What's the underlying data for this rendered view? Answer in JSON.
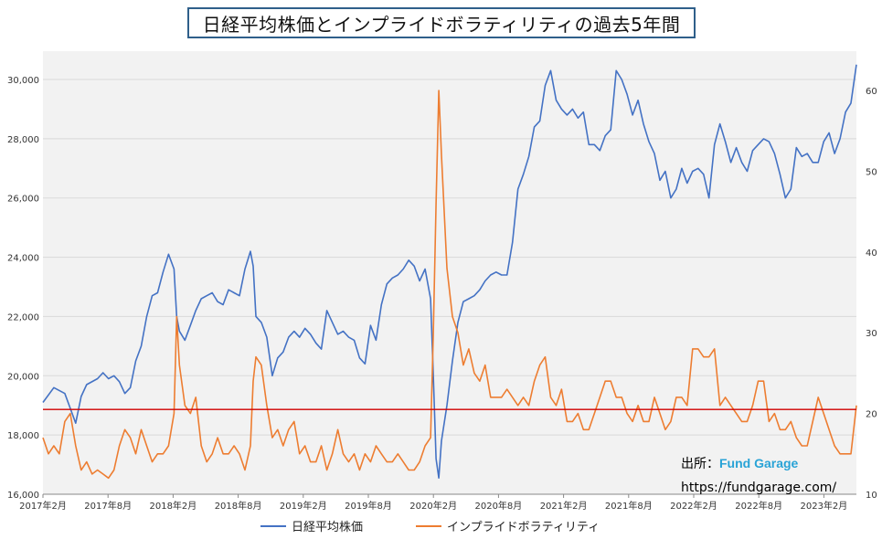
{
  "title": "日経平均株価とインプライドボラティリティの過去5年間",
  "source": {
    "label": "出所：",
    "brand": "Fund Garage",
    "url": "https://fundgarage.com/"
  },
  "colors": {
    "nikkei": "#4472c4",
    "iv": "#ed7d31",
    "refline": "#d00000",
    "plot_bg": "#f2f2f2",
    "grid": "#d9d9d9"
  },
  "chart_data": {
    "type": "line",
    "title": "日経平均株価とインプライドボラティリティの過去5年間",
    "x_ticks": [
      "2017年2月",
      "2017年8月",
      "2018年2月",
      "2018年8月",
      "2019年2月",
      "2019年8月",
      "2020年2月",
      "2020年8月",
      "2021年2月",
      "2021年8月",
      "2022年2月",
      "2022年8月",
      "2023年2月"
    ],
    "y_left": {
      "lim": [
        16000,
        30500
      ],
      "ticks": [
        "16,000",
        "18,000",
        "20,000",
        "22,000",
        "24,000",
        "26,000",
        "28,000",
        "30,000"
      ]
    },
    "y_right": {
      "lim": [
        10,
        65
      ],
      "ticks": [
        "10",
        "20",
        "30",
        "40",
        "50",
        "60"
      ]
    },
    "reference_line": {
      "axis": "right",
      "value": 20.5
    },
    "legend_position": "bottom",
    "series": [
      {
        "name": "日経平均株価",
        "axis": "left",
        "points": [
          [
            0,
            19100
          ],
          [
            2,
            19600
          ],
          [
            4,
            19400
          ],
          [
            5,
            18900
          ],
          [
            6,
            18400
          ],
          [
            7,
            19300
          ],
          [
            8,
            19700
          ],
          [
            10,
            19900
          ],
          [
            11,
            20100
          ],
          [
            12,
            19900
          ],
          [
            13,
            20000
          ],
          [
            14,
            19800
          ],
          [
            15,
            19400
          ],
          [
            16,
            19600
          ],
          [
            17,
            20500
          ],
          [
            18,
            21000
          ],
          [
            19,
            22000
          ],
          [
            20,
            22700
          ],
          [
            21,
            22800
          ],
          [
            22,
            23500
          ],
          [
            23,
            24100
          ],
          [
            24,
            23600
          ],
          [
            24.5,
            22000
          ],
          [
            25,
            21500
          ],
          [
            26,
            21200
          ],
          [
            27,
            21700
          ],
          [
            28,
            22200
          ],
          [
            29,
            22600
          ],
          [
            30,
            22700
          ],
          [
            31,
            22800
          ],
          [
            32,
            22500
          ],
          [
            33,
            22400
          ],
          [
            34,
            22900
          ],
          [
            35,
            22800
          ],
          [
            36,
            22700
          ],
          [
            37,
            23600
          ],
          [
            38,
            24200
          ],
          [
            38.5,
            23700
          ],
          [
            39,
            22000
          ],
          [
            40,
            21800
          ],
          [
            41,
            21300
          ],
          [
            42,
            20000
          ],
          [
            43,
            20600
          ],
          [
            44,
            20800
          ],
          [
            45,
            21300
          ],
          [
            46,
            21500
          ],
          [
            47,
            21300
          ],
          [
            48,
            21600
          ],
          [
            49,
            21400
          ],
          [
            50,
            21100
          ],
          [
            51,
            20900
          ],
          [
            52,
            22200
          ],
          [
            53,
            21800
          ],
          [
            54,
            21400
          ],
          [
            55,
            21500
          ],
          [
            56,
            21300
          ],
          [
            57,
            21200
          ],
          [
            58,
            20600
          ],
          [
            59,
            20400
          ],
          [
            60,
            21700
          ],
          [
            61,
            21200
          ],
          [
            62,
            22400
          ],
          [
            63,
            23100
          ],
          [
            64,
            23300
          ],
          [
            65,
            23400
          ],
          [
            66,
            23600
          ],
          [
            67,
            23900
          ],
          [
            68,
            23700
          ],
          [
            69,
            23200
          ],
          [
            70,
            23600
          ],
          [
            71,
            22600
          ],
          [
            71.5,
            20000
          ],
          [
            72,
            17200
          ],
          [
            72.5,
            16550
          ],
          [
            73,
            17800
          ],
          [
            74,
            19000
          ],
          [
            75,
            20500
          ],
          [
            76,
            21800
          ],
          [
            77,
            22500
          ],
          [
            78,
            22600
          ],
          [
            79,
            22700
          ],
          [
            80,
            22900
          ],
          [
            81,
            23200
          ],
          [
            82,
            23400
          ],
          [
            83,
            23500
          ],
          [
            84,
            23400
          ],
          [
            85,
            23400
          ],
          [
            86,
            24500
          ],
          [
            87,
            26300
          ],
          [
            88,
            26800
          ],
          [
            89,
            27400
          ],
          [
            90,
            28400
          ],
          [
            91,
            28600
          ],
          [
            92,
            29800
          ],
          [
            93,
            30300
          ],
          [
            94,
            29300
          ],
          [
            95,
            29000
          ],
          [
            96,
            28800
          ],
          [
            97,
            29000
          ],
          [
            98,
            28700
          ],
          [
            99,
            28900
          ],
          [
            100,
            27800
          ],
          [
            101,
            27800
          ],
          [
            102,
            27600
          ],
          [
            103,
            28100
          ],
          [
            104,
            28300
          ],
          [
            105,
            30300
          ],
          [
            106,
            30000
          ],
          [
            107,
            29500
          ],
          [
            108,
            28800
          ],
          [
            109,
            29300
          ],
          [
            110,
            28500
          ],
          [
            111,
            27900
          ],
          [
            112,
            27500
          ],
          [
            113,
            26600
          ],
          [
            114,
            26900
          ],
          [
            115,
            26000
          ],
          [
            116,
            26300
          ],
          [
            117,
            27000
          ],
          [
            118,
            26500
          ],
          [
            119,
            26900
          ],
          [
            120,
            27000
          ],
          [
            121,
            26800
          ],
          [
            122,
            26000
          ],
          [
            123,
            27800
          ],
          [
            124,
            28500
          ],
          [
            125,
            27900
          ],
          [
            126,
            27200
          ],
          [
            127,
            27700
          ],
          [
            128,
            27200
          ],
          [
            129,
            26900
          ],
          [
            130,
            27600
          ],
          [
            131,
            27800
          ],
          [
            132,
            28000
          ],
          [
            133,
            27900
          ],
          [
            134,
            27500
          ],
          [
            135,
            26800
          ],
          [
            136,
            26000
          ],
          [
            137,
            26300
          ],
          [
            138,
            27700
          ],
          [
            139,
            27400
          ],
          [
            140,
            27500
          ],
          [
            141,
            27200
          ],
          [
            142,
            27200
          ],
          [
            143,
            27900
          ],
          [
            144,
            28200
          ],
          [
            145,
            27500
          ],
          [
            146,
            28000
          ],
          [
            147,
            28900
          ],
          [
            148,
            29200
          ],
          [
            149,
            30500
          ]
        ]
      },
      {
        "name": "インプライドボラティリティ",
        "axis": "right",
        "points": [
          [
            0,
            17
          ],
          [
            1,
            15
          ],
          [
            2,
            16
          ],
          [
            3,
            15
          ],
          [
            4,
            19
          ],
          [
            5,
            20
          ],
          [
            6,
            16
          ],
          [
            7,
            13
          ],
          [
            8,
            14
          ],
          [
            9,
            12.5
          ],
          [
            10,
            13
          ],
          [
            11,
            12.5
          ],
          [
            12,
            12
          ],
          [
            13,
            13
          ],
          [
            14,
            16
          ],
          [
            15,
            18
          ],
          [
            16,
            17
          ],
          [
            17,
            15
          ],
          [
            18,
            18
          ],
          [
            19,
            16
          ],
          [
            20,
            14
          ],
          [
            21,
            15
          ],
          [
            22,
            15
          ],
          [
            23,
            16
          ],
          [
            24,
            20
          ],
          [
            24.5,
            32
          ],
          [
            25,
            26
          ],
          [
            26,
            21
          ],
          [
            27,
            20
          ],
          [
            28,
            22
          ],
          [
            29,
            16
          ],
          [
            30,
            14
          ],
          [
            31,
            15
          ],
          [
            32,
            17
          ],
          [
            33,
            15
          ],
          [
            34,
            15
          ],
          [
            35,
            16
          ],
          [
            36,
            15
          ],
          [
            37,
            13
          ],
          [
            38,
            16
          ],
          [
            38.5,
            24
          ],
          [
            39,
            27
          ],
          [
            40,
            26
          ],
          [
            41,
            21
          ],
          [
            42,
            17
          ],
          [
            43,
            18
          ],
          [
            44,
            16
          ],
          [
            45,
            18
          ],
          [
            46,
            19
          ],
          [
            47,
            15
          ],
          [
            48,
            16
          ],
          [
            49,
            14
          ],
          [
            50,
            14
          ],
          [
            51,
            16
          ],
          [
            52,
            13
          ],
          [
            53,
            15
          ],
          [
            54,
            18
          ],
          [
            55,
            15
          ],
          [
            56,
            14
          ],
          [
            57,
            15
          ],
          [
            58,
            13
          ],
          [
            59,
            15
          ],
          [
            60,
            14
          ],
          [
            61,
            16
          ],
          [
            62,
            15
          ],
          [
            63,
            14
          ],
          [
            64,
            14
          ],
          [
            65,
            15
          ],
          [
            66,
            14
          ],
          [
            67,
            13
          ],
          [
            68,
            13
          ],
          [
            69,
            14
          ],
          [
            70,
            16
          ],
          [
            71,
            17
          ],
          [
            71.5,
            30
          ],
          [
            72,
            46
          ],
          [
            72.5,
            60
          ],
          [
            73,
            52
          ],
          [
            74,
            38
          ],
          [
            75,
            32
          ],
          [
            76,
            30
          ],
          [
            77,
            26
          ],
          [
            78,
            28
          ],
          [
            79,
            25
          ],
          [
            80,
            24
          ],
          [
            81,
            26
          ],
          [
            82,
            22
          ],
          [
            83,
            22
          ],
          [
            84,
            22
          ],
          [
            85,
            23
          ],
          [
            86,
            22
          ],
          [
            87,
            21
          ],
          [
            88,
            22
          ],
          [
            89,
            21
          ],
          [
            90,
            24
          ],
          [
            91,
            26
          ],
          [
            92,
            27
          ],
          [
            93,
            22
          ],
          [
            94,
            21
          ],
          [
            95,
            23
          ],
          [
            96,
            19
          ],
          [
            97,
            19
          ],
          [
            98,
            20
          ],
          [
            99,
            18
          ],
          [
            100,
            18
          ],
          [
            101,
            20
          ],
          [
            102,
            22
          ],
          [
            103,
            24
          ],
          [
            104,
            24
          ],
          [
            105,
            22
          ],
          [
            106,
            22
          ],
          [
            107,
            20
          ],
          [
            108,
            19
          ],
          [
            109,
            21
          ],
          [
            110,
            19
          ],
          [
            111,
            19
          ],
          [
            112,
            22
          ],
          [
            113,
            20
          ],
          [
            114,
            18
          ],
          [
            115,
            19
          ],
          [
            116,
            22
          ],
          [
            117,
            22
          ],
          [
            118,
            21
          ],
          [
            119,
            28
          ],
          [
            120,
            28
          ],
          [
            121,
            27
          ],
          [
            122,
            27
          ],
          [
            123,
            28
          ],
          [
            124,
            21
          ],
          [
            125,
            22
          ],
          [
            126,
            21
          ],
          [
            127,
            20
          ],
          [
            128,
            19
          ],
          [
            129,
            19
          ],
          [
            130,
            21
          ],
          [
            131,
            24
          ],
          [
            132,
            24
          ],
          [
            133,
            19
          ],
          [
            134,
            20
          ],
          [
            135,
            18
          ],
          [
            136,
            18
          ],
          [
            137,
            19
          ],
          [
            138,
            17
          ],
          [
            139,
            16
          ],
          [
            140,
            16
          ],
          [
            141,
            19
          ],
          [
            142,
            22
          ],
          [
            143,
            20
          ],
          [
            144,
            18
          ],
          [
            145,
            16
          ],
          [
            146,
            15
          ],
          [
            147,
            15
          ],
          [
            148,
            15
          ],
          [
            149,
            21
          ]
        ]
      }
    ]
  }
}
